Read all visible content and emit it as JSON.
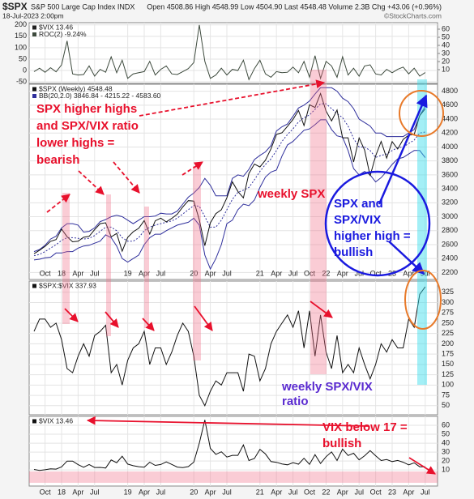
{
  "header": {
    "symbol": "$SPX",
    "name": "S&P 500 Large Cap Index INDX",
    "quote": "Open 4508.86 High 4548.99 Low 4504.90 Last 4548.48 Volume 2.3B Chg +43.06 (+0.96%)",
    "date": "18-Jul-2023 2:00pm",
    "watermark": "©StockCharts.com"
  },
  "chart_data": [
    {
      "type": "line",
      "legend_title": "$VIX 13.46",
      "grid": true,
      "ylim": [
        -57,
        210
      ],
      "yticks": [
        -50,
        0,
        50,
        100,
        150,
        200
      ],
      "y2lim": [
        -7,
        68
      ],
      "y2ticks": [
        10,
        20,
        30,
        40,
        50,
        60
      ],
      "series": [
        {
          "name": "ROC(2) -9.24%",
          "color": "#3d4a3d",
          "values": [
            -5,
            10,
            -8,
            12,
            -6,
            25,
            130,
            -15,
            -20,
            -18,
            20,
            -25,
            5,
            -8,
            60,
            -10,
            45,
            -35,
            -15,
            -10,
            -5,
            40,
            -20,
            5,
            20,
            -15,
            -18,
            -5,
            8,
            35,
            200,
            40,
            -35,
            -20,
            10,
            -20,
            5,
            0,
            45,
            -40,
            8,
            45,
            -15,
            -30,
            -5,
            -10,
            -8,
            15,
            -10,
            40,
            -30,
            65,
            -35,
            40,
            20,
            -30,
            60,
            -20,
            10,
            -25,
            20,
            25,
            -15,
            -20,
            5,
            -10,
            5,
            15,
            -15,
            10,
            -25,
            -9.24
          ]
        }
      ]
    },
    {
      "type": "line",
      "grid": true,
      "categories": [
        null,
        null,
        "Oct",
        null,
        null,
        "18",
        null,
        null,
        "Apr",
        null,
        null,
        "Jul",
        null,
        null,
        null,
        null,
        null,
        "19",
        null,
        null,
        "Apr",
        null,
        null,
        "Jul",
        null,
        null,
        null,
        null,
        null,
        "20",
        null,
        null,
        "Apr",
        null,
        null,
        "Jul",
        null,
        null,
        null,
        null,
        null,
        "21",
        null,
        null,
        "Apr",
        null,
        null,
        "Jul",
        null,
        null,
        "Oct",
        null,
        null,
        "22",
        null,
        null,
        "Apr",
        null,
        null,
        "Jul",
        null,
        null,
        "Oct",
        null,
        null,
        "23",
        null,
        null,
        "Apr",
        null,
        null,
        "Jul"
      ],
      "ylim": [
        2100,
        4900
      ],
      "yticks": [
        2200,
        2400,
        2600,
        2800,
        3000,
        3200,
        3400,
        3600,
        3800,
        4000,
        4200,
        4400,
        4600,
        4800
      ],
      "series": [
        {
          "name": "$SPX (Weekly) 4548.48",
          "color": "#111111",
          "values": [
            2470,
            2519,
            2575,
            2647,
            2673,
            2823,
            2713,
            2640,
            2648,
            2705,
            2718,
            2816,
            2901,
            2913,
            2711,
            2760,
            2506,
            2704,
            2784,
            2834,
            2945,
            2752,
            2941,
            2980,
            2926,
            2976,
            3037,
            3140,
            3230,
            3225,
            2954,
            2584,
            2912,
            3044,
            3100,
            3271,
            3500,
            3363,
            3270,
            3621,
            3756,
            3714,
            3811,
            3973,
            4181,
            4204,
            4297,
            4395,
            4523,
            4307,
            4605,
            4567,
            4766,
            4516,
            4374,
            4530,
            4132,
            4132,
            3785,
            4130,
            3955,
            3586,
            3872,
            4080,
            3840,
            4077,
            3970,
            4109,
            4169,
            4180,
            4450,
            4548
          ]
        }
      ],
      "bands": {
        "name": "BB(20,2.0) 3846.84 - 4215.22 - 4583.60",
        "color": "#2f2f9c",
        "upper": [
          2500,
          2530,
          2590,
          2680,
          2720,
          2840,
          2900,
          2900,
          2880,
          2780,
          2790,
          2840,
          2930,
          2960,
          3000,
          3020,
          3000,
          2950,
          2900,
          2950,
          3000,
          3000,
          3010,
          3050,
          3040,
          3040,
          3080,
          3180,
          3280,
          3340,
          3420,
          3550,
          3450,
          3300,
          3300,
          3300,
          3550,
          3600,
          3580,
          3680,
          3820,
          3880,
          3930,
          4020,
          4230,
          4290,
          4330,
          4440,
          4560,
          4600,
          4660,
          4760,
          4850,
          4850,
          4850,
          4800,
          4700,
          4650,
          4550,
          4400,
          4350,
          4300,
          4200,
          4200,
          4150,
          4150,
          4150,
          4150,
          4200,
          4250,
          4450,
          4584
        ],
        "middle": [
          2440,
          2460,
          2500,
          2550,
          2600,
          2660,
          2700,
          2700,
          2690,
          2680,
          2690,
          2730,
          2790,
          2850,
          2850,
          2800,
          2700,
          2650,
          2650,
          2700,
          2800,
          2850,
          2880,
          2900,
          2920,
          2940,
          2980,
          3040,
          3100,
          3160,
          3150,
          3000,
          2850,
          2850,
          2950,
          3100,
          3250,
          3350,
          3380,
          3420,
          3530,
          3650,
          3750,
          3830,
          3950,
          4080,
          4180,
          4260,
          4360,
          4420,
          4460,
          4540,
          4620,
          4620,
          4550,
          4480,
          4420,
          4300,
          4120,
          4000,
          4000,
          3950,
          3850,
          3880,
          3900,
          3950,
          3990,
          4000,
          4050,
          4100,
          4200,
          4215
        ],
        "lower": [
          2380,
          2390,
          2410,
          2420,
          2480,
          2480,
          2500,
          2500,
          2550,
          2580,
          2590,
          2620,
          2650,
          2740,
          2700,
          2580,
          2400,
          2350,
          2400,
          2450,
          2600,
          2700,
          2750,
          2750,
          2800,
          2840,
          2880,
          2900,
          2920,
          2980,
          2880,
          2450,
          2250,
          2400,
          2600,
          2900,
          2950,
          3100,
          3180,
          3160,
          3240,
          3420,
          3570,
          3640,
          3670,
          3870,
          4030,
          4080,
          4160,
          4240,
          4260,
          4320,
          4390,
          4390,
          4250,
          4160,
          4140,
          3950,
          3690,
          3600,
          3650,
          3600,
          3500,
          3560,
          3650,
          3750,
          3830,
          3850,
          3900,
          3950,
          3950,
          3847
        ]
      },
      "annotations": [
        {
          "lines": [
            "SPX higher highs",
            "and SPX/VIX ratio",
            "lower highs =",
            "bearish"
          ],
          "color": "#e8102c"
        },
        {
          "lines": [
            "weekly SPX"
          ],
          "color": "#e8102c"
        },
        {
          "lines": [
            "SPX and",
            "SPX/VIX",
            "higher high =",
            "bullish"
          ],
          "color": "#1a1adf"
        }
      ]
    },
    {
      "type": "line",
      "grid": true,
      "ylim": [
        28,
        352
      ],
      "yticks": [
        50,
        75,
        100,
        125,
        150,
        175,
        200,
        225,
        250,
        275,
        300,
        325
      ],
      "series": [
        {
          "name": "$SPX:$VIX 337.93",
          "color": "#111111",
          "values": [
            230,
            260,
            260,
            240,
            250,
            210,
            140,
            130,
            170,
            200,
            170,
            220,
            230,
            245,
            130,
            150,
            100,
            160,
            190,
            200,
            230,
            150,
            190,
            190,
            150,
            180,
            220,
            250,
            230,
            170,
            75,
            50,
            85,
            110,
            100,
            130,
            130,
            130,
            85,
            175,
            170,
            110,
            140,
            200,
            230,
            250,
            270,
            240,
            280,
            190,
            280,
            170,
            270,
            180,
            140,
            220,
            130,
            150,
            130,
            190,
            150,
            115,
            150,
            200,
            180,
            210,
            190,
            190,
            260,
            240,
            320,
            338
          ]
        }
      ],
      "annotations": [
        {
          "lines": [
            "weekly SPX/VIX",
            "ratio"
          ],
          "color": "#5a2ad0"
        }
      ]
    },
    {
      "type": "line",
      "grid": true,
      "categories": [
        null,
        null,
        "Oct",
        null,
        null,
        "18",
        null,
        null,
        "Apr",
        null,
        null,
        "Jul",
        null,
        null,
        null,
        null,
        null,
        "19",
        null,
        null,
        "Apr",
        null,
        null,
        "Jul",
        null,
        null,
        null,
        null,
        null,
        "20",
        null,
        null,
        "Apr",
        null,
        null,
        "Jul",
        null,
        null,
        null,
        null,
        null,
        "21",
        null,
        null,
        "Apr",
        null,
        null,
        "Jul",
        null,
        null,
        "Oct",
        null,
        null,
        "22",
        null,
        null,
        "Apr",
        null,
        null,
        "Jul",
        null,
        null,
        "Oct",
        null,
        null,
        "23",
        null,
        null,
        "Apr",
        null,
        null,
        "Jul"
      ],
      "ylim": [
        -8,
        70
      ],
      "yticks": [
        10,
        20,
        30,
        40,
        50,
        60
      ],
      "series": [
        {
          "name": "$VIX 13.46",
          "color": "#111111",
          "values": [
            10.6,
            9.5,
            10.2,
            11.3,
            11,
            13.5,
            19.9,
            19.9,
            15.9,
            13,
            16.1,
            12.8,
            12.9,
            12.1,
            21.2,
            18.1,
            25.4,
            16.6,
            14.8,
            13.7,
            13.1,
            18.7,
            15.1,
            16.1,
            19,
            16.2,
            13.2,
            12.6,
            13.8,
            18.8,
            40.1,
            66,
            34.2,
            27.5,
            30.4,
            24.5,
            26.4,
            26.4,
            38,
            20.6,
            22.8,
            33.1,
            27.9,
            19.4,
            18.6,
            16.8,
            15.8,
            18.2,
            16.5,
            23.1,
            16.3,
            27.2,
            17.2,
            24.8,
            30.2,
            20.6,
            33.4,
            26.2,
            28.7,
            21.3,
            25.9,
            31.6,
            25.9,
            20.6,
            21.7,
            19.4,
            20.7,
            18.7,
            15.8,
            17.9,
            13.6,
            13.46
          ]
        }
      ],
      "annotations": [
        {
          "lines": [
            "VIX below 17 =",
            "bullish"
          ],
          "color": "#e8102c"
        }
      ]
    }
  ]
}
